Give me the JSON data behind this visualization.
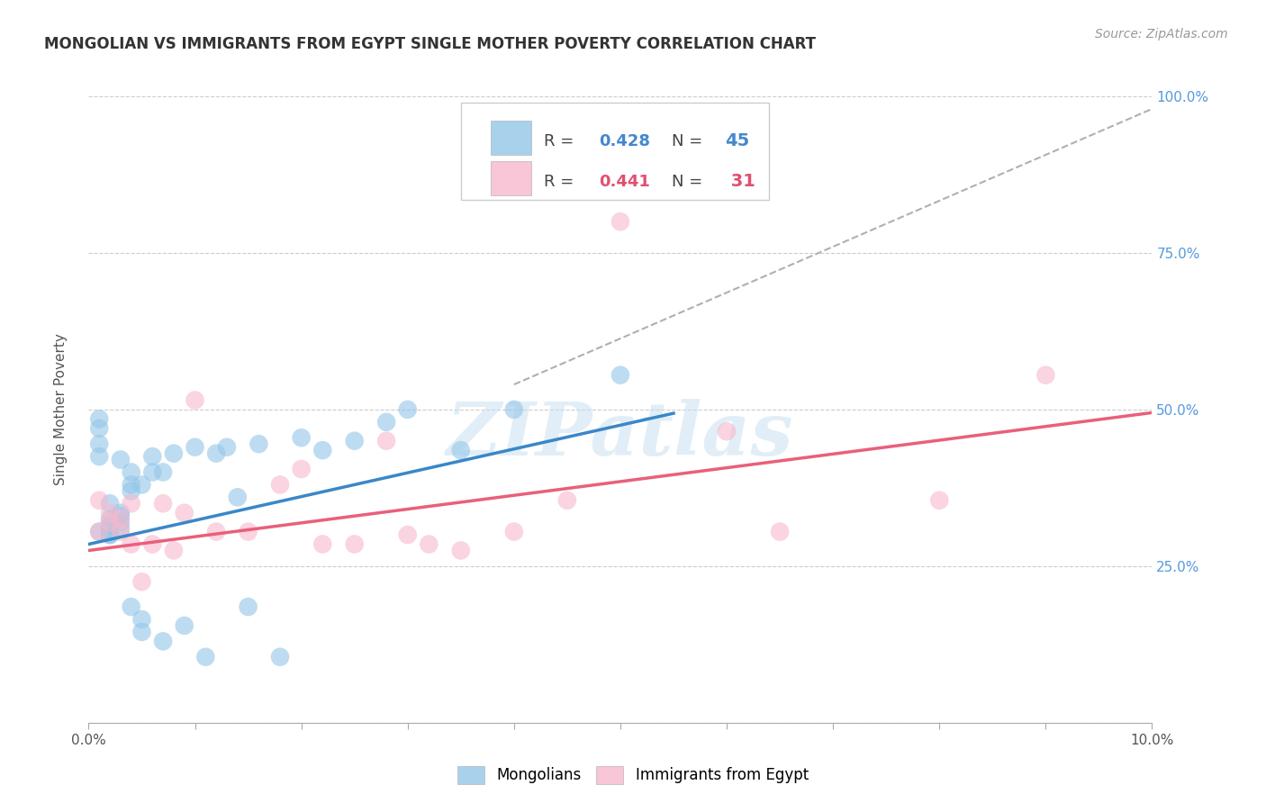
{
  "title": "MONGOLIAN VS IMMIGRANTS FROM EGYPT SINGLE MOTHER POVERTY CORRELATION CHART",
  "source": "Source: ZipAtlas.com",
  "ylabel": "Single Mother Poverty",
  "xlim": [
    0,
    0.1
  ],
  "ylim": [
    0,
    1.0
  ],
  "yticks": [
    0.0,
    0.25,
    0.5,
    0.75,
    1.0
  ],
  "yticklabels": [
    "",
    "25.0%",
    "50.0%",
    "75.0%",
    "100.0%"
  ],
  "blue_color": "#93c6e8",
  "pink_color": "#f7b8cc",
  "blue_line_color": "#3a87c8",
  "pink_line_color": "#e8607a",
  "watermark": "ZIPatlas",
  "mongolian_x": [
    0.001,
    0.001,
    0.001,
    0.001,
    0.001,
    0.002,
    0.002,
    0.002,
    0.002,
    0.002,
    0.002,
    0.003,
    0.003,
    0.003,
    0.003,
    0.003,
    0.004,
    0.004,
    0.004,
    0.004,
    0.005,
    0.005,
    0.005,
    0.006,
    0.006,
    0.007,
    0.007,
    0.008,
    0.009,
    0.01,
    0.011,
    0.012,
    0.013,
    0.014,
    0.015,
    0.016,
    0.018,
    0.02,
    0.022,
    0.025,
    0.028,
    0.03,
    0.035,
    0.04,
    0.05
  ],
  "mongolian_y": [
    0.305,
    0.485,
    0.47,
    0.445,
    0.425,
    0.325,
    0.315,
    0.31,
    0.3,
    0.3,
    0.35,
    0.335,
    0.33,
    0.32,
    0.31,
    0.42,
    0.4,
    0.38,
    0.37,
    0.185,
    0.165,
    0.145,
    0.38,
    0.425,
    0.4,
    0.4,
    0.13,
    0.43,
    0.155,
    0.44,
    0.105,
    0.43,
    0.44,
    0.36,
    0.185,
    0.445,
    0.105,
    0.455,
    0.435,
    0.45,
    0.48,
    0.5,
    0.435,
    0.5,
    0.555
  ],
  "egypt_x": [
    0.001,
    0.001,
    0.002,
    0.002,
    0.003,
    0.003,
    0.004,
    0.004,
    0.005,
    0.006,
    0.007,
    0.008,
    0.009,
    0.01,
    0.012,
    0.015,
    0.018,
    0.02,
    0.022,
    0.025,
    0.028,
    0.03,
    0.032,
    0.035,
    0.04,
    0.045,
    0.05,
    0.06,
    0.065,
    0.08,
    0.09
  ],
  "egypt_y": [
    0.355,
    0.305,
    0.335,
    0.32,
    0.325,
    0.305,
    0.285,
    0.35,
    0.225,
    0.285,
    0.35,
    0.275,
    0.335,
    0.515,
    0.305,
    0.305,
    0.38,
    0.405,
    0.285,
    0.285,
    0.45,
    0.3,
    0.285,
    0.275,
    0.305,
    0.355,
    0.8,
    0.465,
    0.305,
    0.355,
    0.555
  ],
  "blue_trend_x": [
    0.0,
    0.055
  ],
  "blue_trend_slope": 3.8,
  "blue_trend_intercept": 0.285,
  "pink_trend_x": [
    0.0,
    0.1
  ],
  "pink_trend_slope": 2.2,
  "pink_trend_intercept": 0.275,
  "dash_line": [
    [
      0.04,
      0.1
    ],
    [
      0.54,
      0.98
    ]
  ]
}
